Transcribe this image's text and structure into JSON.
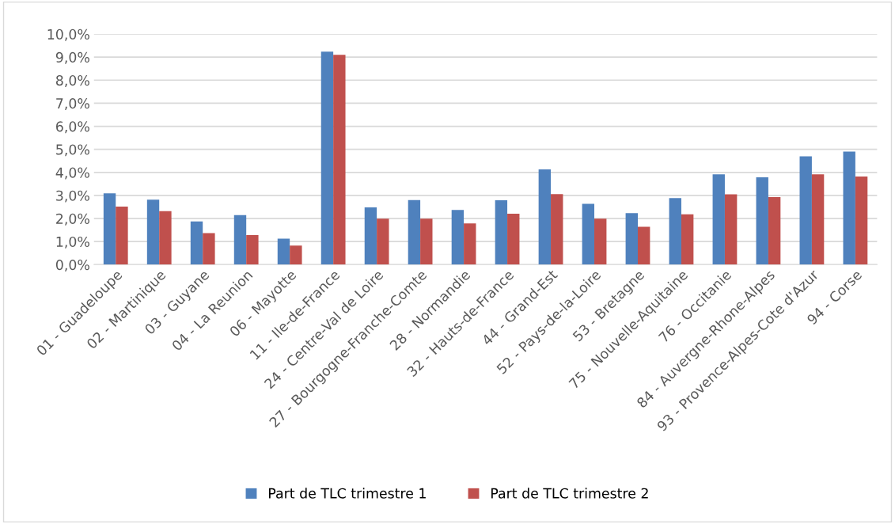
{
  "chart_data": {
    "type": "bar",
    "categories": [
      "01 - Guadeloupe",
      "02 - Martinique",
      "03 - Guyane",
      "04 - La Reunion",
      "06 - Mayotte",
      "11 - Ile-de-France",
      "24 - Centre-Val de Loire",
      "27 - Bourgogne-Franche-Comte",
      "28 - Normandie",
      "32 - Hauts-de-France",
      "44 - Grand-Est",
      "52 - Pays-de-la-Loire",
      "53 - Bretagne",
      "75 - Nouvelle-Aquitaine",
      "76 - Occitanie",
      "84 - Auvergne-Rhone-Alpes",
      "93 - Provence-Alpes-Cote d'Azur",
      "94 - Corse"
    ],
    "series": [
      {
        "name": "Part de TLC trimestre 1",
        "color": "#4f81bd",
        "values": [
          3.09,
          2.82,
          1.87,
          2.15,
          1.13,
          9.24,
          2.48,
          2.8,
          2.37,
          2.79,
          4.13,
          2.64,
          2.23,
          2.89,
          3.92,
          3.79,
          4.7,
          4.9
        ]
      },
      {
        "name": "Part de TLC trimestre 2",
        "color": "#c0504d",
        "values": [
          2.52,
          2.32,
          1.37,
          1.28,
          0.83,
          9.1,
          1.99,
          1.99,
          1.79,
          2.21,
          3.06,
          1.99,
          1.64,
          2.18,
          3.05,
          2.93,
          3.92,
          3.82
        ]
      }
    ],
    "ylim": [
      0,
      10
    ],
    "yticks": [
      {
        "value": 0,
        "label": "0,0%"
      },
      {
        "value": 1,
        "label": "1,0%"
      },
      {
        "value": 2,
        "label": "2,0%"
      },
      {
        "value": 3,
        "label": "3,0%"
      },
      {
        "value": 4,
        "label": "4,0%"
      },
      {
        "value": 5,
        "label": "5,0%"
      },
      {
        "value": 6,
        "label": "6,0%"
      },
      {
        "value": 7,
        "label": "7,0%"
      },
      {
        "value": 8,
        "label": "8,0%"
      },
      {
        "value": 9,
        "label": "9,0%"
      },
      {
        "value": 10,
        "label": "10,0%"
      }
    ],
    "grid": "y",
    "legend": "bottom"
  }
}
